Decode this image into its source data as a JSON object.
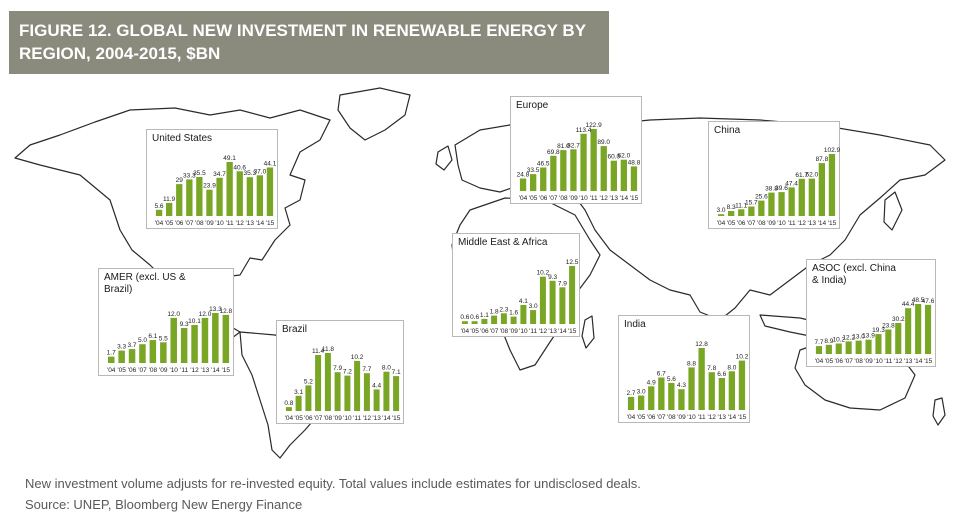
{
  "figure": {
    "title_line1": "FIGURE 12. GLOBAL NEW INVESTMENT IN RENEWABLE ENERGY BY",
    "title_line2": "REGION, 2004-2015, $BN"
  },
  "footer": {
    "note": "New investment volume adjusts for re-invested equity.  Total values include estimates for undisclosed deals.",
    "source": "Source: UNEP, Bloomberg New Energy Finance"
  },
  "colors": {
    "bar": "#7aa625",
    "title_bg": "#8a8a7d",
    "map_fill": "#ffffff",
    "map_stroke": "#2a2a2a"
  },
  "chart_data": [
    {
      "id": "us",
      "type": "bar",
      "title": "United States",
      "categories": [
        "'04",
        "'05",
        "'06",
        "'07",
        "'08",
        "'09",
        "'10",
        "'11",
        "'12",
        "'13",
        "'14",
        "'15"
      ],
      "values": [
        5.6,
        11.9,
        29.0,
        33.3,
        35.5,
        23.9,
        34.7,
        49.1,
        40.6,
        35.3,
        37.0,
        44.1
      ],
      "labels": [
        "5.6",
        "11.9",
        "29",
        "33.3",
        "35.5",
        "23.9",
        "34.7",
        "49.1",
        "40.6",
        "35.3",
        "37.0",
        "44.1"
      ]
    },
    {
      "id": "europe",
      "type": "bar",
      "title": "Europe",
      "categories": [
        "'04",
        "'05",
        "'06",
        "'07",
        "'08",
        "'09",
        "'10",
        "'11",
        "'12",
        "'13",
        "'14",
        "'15"
      ],
      "values": [
        24.8,
        33.5,
        46.5,
        69.8,
        81.0,
        82.7,
        113.4,
        122.9,
        89.0,
        60.0,
        62.0,
        48.8
      ],
      "labels": [
        "24.8",
        "33.5",
        "46.5",
        "69.8",
        "81.0",
        "82.7",
        "113.4",
        "122.9",
        "89.0",
        "60.0",
        "62.0",
        "48.8"
      ]
    },
    {
      "id": "china",
      "type": "bar",
      "title": "China",
      "categories": [
        "'04",
        "'05",
        "'06",
        "'07",
        "'08",
        "'09",
        "'10",
        "'11",
        "'12",
        "'13",
        "'14",
        "'15"
      ],
      "values": [
        3.0,
        8.3,
        11.1,
        15.7,
        25.6,
        38.8,
        39.6,
        47.4,
        61.7,
        62.0,
        87.8,
        102.9
      ],
      "labels": [
        "3.0",
        "8.3",
        "11.1",
        "15.7",
        "25.6",
        "38.8",
        "39.6",
        "47.4",
        "61.7",
        "62.0",
        "87.8",
        "102.9"
      ]
    },
    {
      "id": "mea",
      "type": "bar",
      "title": "Middle East & Africa",
      "categories": [
        "'04",
        "'05",
        "'06",
        "'07",
        "'08",
        "'09",
        "'10",
        "'11",
        "'12",
        "'13",
        "'14",
        "'15"
      ],
      "values": [
        0.6,
        0.6,
        1.1,
        1.8,
        2.3,
        1.6,
        4.1,
        3.0,
        10.2,
        9.3,
        7.9,
        12.5
      ],
      "labels": [
        "0.6",
        "0.6",
        "1.1",
        "1.8",
        "2.3",
        "1.6",
        "4.1",
        "3.0",
        "10.2",
        "9.3",
        "7.9",
        "12.5"
      ]
    },
    {
      "id": "amer",
      "type": "bar",
      "title": "AMER (excl. US &\nBrazil)",
      "categories": [
        "'04",
        "'05",
        "'06",
        "'07",
        "'08",
        "'09",
        "'10",
        "'11",
        "'12",
        "'13",
        "'14",
        "'15"
      ],
      "values": [
        1.7,
        3.3,
        3.7,
        5.0,
        6.1,
        5.5,
        12.0,
        9.3,
        10.1,
        12.0,
        13.3,
        12.8
      ],
      "labels": [
        "1.7",
        "3.3",
        "3.7",
        "5.0",
        "6.1",
        "5.5",
        "12.0",
        "9.3",
        "10.1",
        "12.0",
        "13.3",
        "12.8"
      ]
    },
    {
      "id": "brazil",
      "type": "bar",
      "title": "Brazil",
      "categories": [
        "'04",
        "'05",
        "'06",
        "'07",
        "'08",
        "'09",
        "'10",
        "'11",
        "'12",
        "'13",
        "'14",
        "'15"
      ],
      "values": [
        0.8,
        3.1,
        5.2,
        11.4,
        11.8,
        7.9,
        7.2,
        10.2,
        7.7,
        4.4,
        8.0,
        7.1
      ],
      "labels": [
        "0.8",
        "3.1",
        "5.2",
        "11.4",
        "11.8",
        "7.9",
        "7.2",
        "10.2",
        "7.7",
        "4.4",
        "8.0",
        "7.1"
      ]
    },
    {
      "id": "india",
      "type": "bar",
      "title": "India",
      "categories": [
        "'04",
        "'05",
        "'06",
        "'07",
        "'08",
        "'09",
        "'10",
        "'11",
        "'12",
        "'13",
        "'14",
        "'15"
      ],
      "values": [
        2.7,
        3.0,
        4.9,
        6.7,
        5.6,
        4.3,
        8.8,
        12.8,
        7.8,
        6.6,
        8.0,
        10.2
      ],
      "labels": [
        "2.7",
        "3.0",
        "4.9",
        "6.7",
        "5.6",
        "4.3",
        "8.8",
        "12.8",
        "7.8",
        "6.6",
        "8.0",
        "10.2"
      ]
    },
    {
      "id": "asoc",
      "type": "bar",
      "title": "ASOC (excl. China\n& India)",
      "categories": [
        "'04",
        "'05",
        "'06",
        "'07",
        "'08",
        "'09",
        "'10",
        "'11",
        "'12",
        "'13",
        "'14",
        "'15"
      ],
      "values": [
        7.7,
        8.9,
        10.2,
        12.2,
        13.0,
        13.9,
        19.3,
        23.8,
        30.2,
        44.4,
        48.5,
        47.6
      ],
      "labels": [
        "7.7",
        "8.9",
        "10.2",
        "12.2",
        "13.0",
        "13.9",
        "19.3",
        "23.8",
        "30.2",
        "44.4",
        "48.5",
        "47.6"
      ]
    }
  ]
}
